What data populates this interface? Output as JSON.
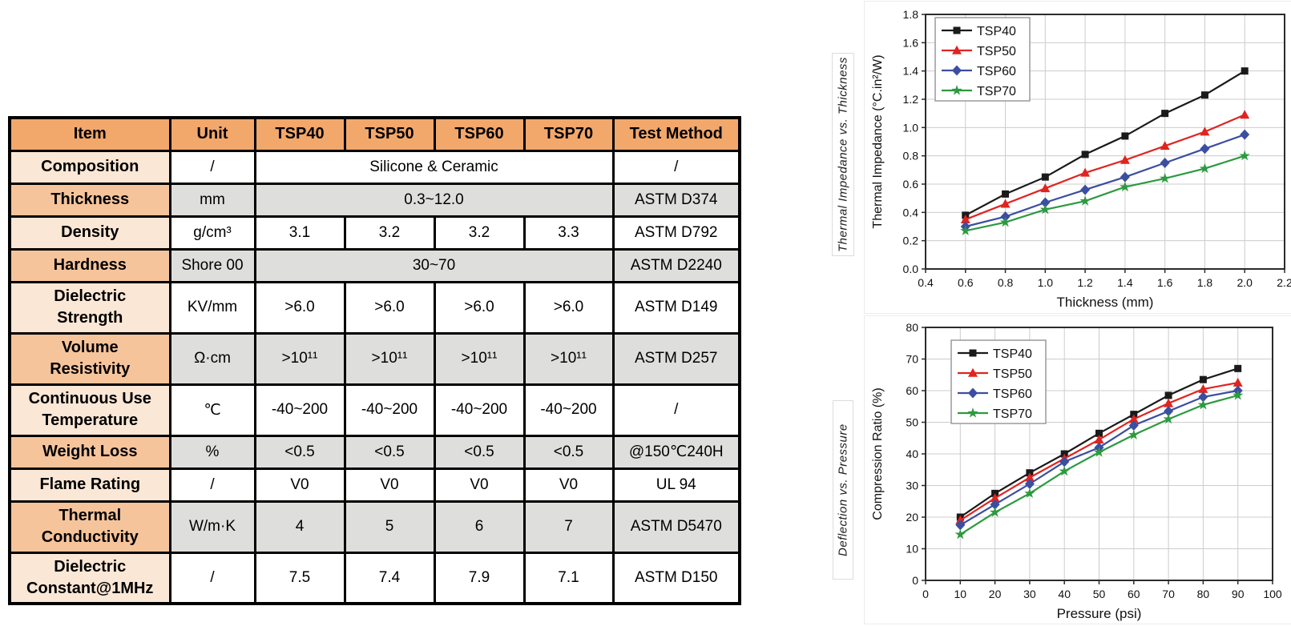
{
  "colors": {
    "header_bg": "#F2A76B",
    "item_even_bg": "#F6C49B",
    "item_odd_bg": "#FBE7D5",
    "shaded_cell_bg": "#DEDEDC",
    "white_cell_bg": "#FFFFFF",
    "border": "#000000",
    "series_black": "#1a1a1a",
    "series_red": "#e02420",
    "series_blue": "#3b4ea0",
    "series_green": "#2c9a3f",
    "grid_line": "#cccccc"
  },
  "table": {
    "headers": [
      "Item",
      "Unit",
      "TSP40",
      "TSP50",
      "TSP60",
      "TSP70",
      "Test Method"
    ],
    "rows": [
      {
        "item": "Composition",
        "unit": "/",
        "values": [
          "Silicone & Ceramic"
        ],
        "span": 4,
        "method": "/",
        "shaded": false,
        "tall": false
      },
      {
        "item": "Thickness",
        "unit": "mm",
        "values": [
          "0.3~12.0"
        ],
        "span": 4,
        "method": "ASTM D374",
        "shaded": true,
        "tall": false
      },
      {
        "item": "Density",
        "unit": "g/cm³",
        "values": [
          "3.1",
          "3.2",
          "3.2",
          "3.3"
        ],
        "span": 1,
        "method": "ASTM D792",
        "shaded": false,
        "tall": false
      },
      {
        "item": "Hardness",
        "unit": "Shore 00",
        "values": [
          "30~70"
        ],
        "span": 4,
        "method": "ASTM D2240",
        "shaded": true,
        "tall": false
      },
      {
        "item": "Dielectric\nStrength",
        "unit": "KV/mm",
        "values": [
          ">6.0",
          ">6.0",
          ">6.0",
          ">6.0"
        ],
        "span": 1,
        "method": "ASTM D149",
        "shaded": false,
        "tall": true
      },
      {
        "item": "Volume\nResistivity",
        "unit": "Ω·cm",
        "values": [
          ">10¹¹",
          ">10¹¹",
          ">10¹¹",
          ">10¹¹"
        ],
        "span": 1,
        "method": "ASTM D257",
        "shaded": true,
        "tall": true
      },
      {
        "item": "Continuous Use\nTemperature",
        "unit": "℃",
        "values": [
          "-40~200",
          "-40~200",
          "-40~200",
          "-40~200"
        ],
        "span": 1,
        "method": "/",
        "shaded": false,
        "tall": true
      },
      {
        "item": "Weight Loss",
        "unit": "%",
        "values": [
          "<0.5",
          "<0.5",
          "<0.5",
          "<0.5"
        ],
        "span": 1,
        "method": "@150℃240H",
        "shaded": true,
        "tall": false
      },
      {
        "item": "Flame Rating",
        "unit": "/",
        "values": [
          "V0",
          "V0",
          "V0",
          "V0"
        ],
        "span": 1,
        "method": "UL 94",
        "shaded": false,
        "tall": false
      },
      {
        "item": "Thermal\nConductivity",
        "unit": "W/m·K",
        "values": [
          "4",
          "5",
          "6",
          "7"
        ],
        "span": 1,
        "method": "ASTM D5470",
        "shaded": true,
        "tall": true
      },
      {
        "item": "Dielectric\nConstant@1MHz",
        "unit": "/",
        "values": [
          "7.5",
          "7.4",
          "7.9",
          "7.1"
        ],
        "span": 1,
        "method": "ASTM D150",
        "shaded": false,
        "tall": true
      }
    ]
  },
  "chart_data": [
    {
      "type": "line",
      "side_label": "Thermal Impedance vs. Thickness",
      "xlabel": "Thickness (mm)",
      "ylabel": "Thermal Impedance (°C.in²/W)",
      "xlim": [
        0.4,
        2.2
      ],
      "ylim": [
        0.0,
        1.8
      ],
      "x_tick_labels": [
        "0.4",
        "0.6",
        "0.8",
        "1.0",
        "1.2",
        "1.4",
        "1.6",
        "1.8",
        "2.0",
        "2.2"
      ],
      "y_tick_labels": [
        "0.0",
        "0.2",
        "0.4",
        "0.6",
        "0.8",
        "1.0",
        "1.2",
        "1.4",
        "1.6",
        "1.8"
      ],
      "grid": true,
      "legend_position": "top-left",
      "x": [
        0.6,
        0.8,
        1.0,
        1.2,
        1.4,
        1.6,
        1.8,
        2.0
      ],
      "series": [
        {
          "name": "TSP40",
          "color": "#1a1a1a",
          "marker": "square",
          "values": [
            0.38,
            0.53,
            0.65,
            0.81,
            0.94,
            1.1,
            1.23,
            1.4
          ]
        },
        {
          "name": "TSP50",
          "color": "#e02420",
          "marker": "triangle",
          "values": [
            0.35,
            0.46,
            0.57,
            0.68,
            0.77,
            0.87,
            0.97,
            1.09
          ]
        },
        {
          "name": "TSP60",
          "color": "#3b4ea0",
          "marker": "diamond",
          "values": [
            0.3,
            0.37,
            0.47,
            0.56,
            0.65,
            0.75,
            0.85,
            0.95
          ]
        },
        {
          "name": "TSP70",
          "color": "#2c9a3f",
          "marker": "star",
          "values": [
            0.27,
            0.33,
            0.42,
            0.48,
            0.58,
            0.64,
            0.71,
            0.8
          ]
        }
      ]
    },
    {
      "type": "line",
      "side_label": "Deflection vs. Pressure",
      "xlabel": "Pressure (psi)",
      "ylabel": "Compression Ratio (%)",
      "xlim": [
        0,
        100
      ],
      "ylim": [
        0,
        80
      ],
      "x_tick_labels": [
        "0",
        "10",
        "20",
        "30",
        "40",
        "50",
        "60",
        "70",
        "80",
        "90",
        "100"
      ],
      "y_tick_labels": [
        "0",
        "10",
        "20",
        "30",
        "40",
        "50",
        "60",
        "70",
        "80"
      ],
      "grid": true,
      "legend_position": "top-left",
      "x": [
        10,
        20,
        30,
        40,
        50,
        60,
        70,
        80,
        90
      ],
      "series": [
        {
          "name": "TSP40",
          "color": "#1a1a1a",
          "marker": "square",
          "values": [
            20.0,
            27.5,
            34.0,
            40.0,
            46.5,
            52.5,
            58.5,
            63.5,
            67.0
          ]
        },
        {
          "name": "TSP50",
          "color": "#e02420",
          "marker": "triangle",
          "values": [
            19.0,
            26.0,
            32.5,
            38.5,
            44.5,
            51.0,
            56.0,
            60.5,
            62.5
          ]
        },
        {
          "name": "TSP60",
          "color": "#3b4ea0",
          "marker": "diamond",
          "values": [
            17.5,
            24.0,
            30.5,
            37.5,
            42.0,
            49.0,
            53.5,
            58.0,
            60.0
          ]
        },
        {
          "name": "TSP70",
          "color": "#2c9a3f",
          "marker": "star",
          "values": [
            14.5,
            21.5,
            27.5,
            34.5,
            40.5,
            46.0,
            51.0,
            55.5,
            58.5
          ]
        }
      ]
    }
  ]
}
